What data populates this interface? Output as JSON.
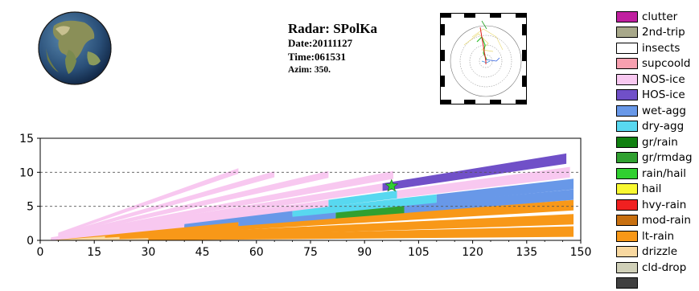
{
  "header": {
    "radar": "Radar: SPolKa",
    "date": "Date:20111127",
    "time": "Time:061531",
    "azim": "Azim: 350."
  },
  "legend": [
    {
      "label": "clutter",
      "color": "#c020a0"
    },
    {
      "label": "2nd-trip",
      "color": "#a8a88a"
    },
    {
      "label": "insects",
      "color": "#ffffff"
    },
    {
      "label": "supcoold",
      "color": "#f8a0b0"
    },
    {
      "label": "NOS-ice",
      "color": "#f8c8f0"
    },
    {
      "label": "HOS-ice",
      "color": "#7050c8"
    },
    {
      "label": "wet-agg",
      "color": "#6898e8"
    },
    {
      "label": "dry-agg",
      "color": "#58d8f0"
    },
    {
      "label": "gr/rain",
      "color": "#108010"
    },
    {
      "label": "gr/rmdag",
      "color": "#30a030"
    },
    {
      "label": "rain/hail",
      "color": "#30d030"
    },
    {
      "label": "hail",
      "color": "#f8f830"
    },
    {
      "label": "hvy-rain",
      "color": "#f02020"
    },
    {
      "label": "mod-rain",
      "color": "#c87010"
    },
    {
      "label": "lt-rain",
      "color": "#f89818"
    },
    {
      "label": "drizzle",
      "color": "#f8d8a0"
    },
    {
      "label": "cld-drop",
      "color": "#d0d0b8"
    },
    {
      "label": "",
      "color": "#404040"
    }
  ],
  "chart_data": {
    "type": "heatmap",
    "title": "",
    "xlabel": "",
    "ylabel": "",
    "xlim": [
      0,
      150
    ],
    "ylim": [
      0,
      15
    ],
    "xticks": [
      0,
      15,
      30,
      45,
      60,
      75,
      90,
      105,
      120,
      135,
      150
    ],
    "yticks": [
      0,
      5,
      10,
      15
    ],
    "grid_y": [
      5,
      10
    ],
    "grid_style": "dashed",
    "marker": {
      "symbol": "star",
      "color": "#30d030",
      "x": 97.5,
      "y": 8.0
    },
    "beams": [
      {
        "elev_deg": 0.5,
        "x0": 3,
        "x1": 148,
        "segments": [
          {
            "x0": 0,
            "x1": 30,
            "cat": "drizzle"
          },
          {
            "x0": 30,
            "x1": 148,
            "cat": "lt-rain"
          }
        ]
      },
      {
        "elev_deg": 1.2,
        "x0": 3,
        "x1": 148,
        "segments": [
          {
            "x0": 0,
            "x1": 22,
            "cat": "drizzle"
          },
          {
            "x0": 22,
            "x1": 148,
            "cat": "lt-rain"
          }
        ]
      },
      {
        "elev_deg": 2.0,
        "x0": 3,
        "x1": 148,
        "segments": [
          {
            "x0": 0,
            "x1": 18,
            "cat": "drizzle"
          },
          {
            "x0": 18,
            "x1": 148,
            "cat": "lt-rain"
          }
        ]
      },
      {
        "elev_deg": 2.6,
        "x0": 3,
        "x1": 148,
        "segments": [
          {
            "x0": 0,
            "x1": 55,
            "cat": "lt-rain"
          },
          {
            "x0": 55,
            "x1": 82,
            "cat": "wet-agg"
          },
          {
            "x0": 82,
            "x1": 101,
            "cat": "gr/rmdag"
          },
          {
            "x0": 101,
            "x1": 148,
            "cat": "wet-agg"
          }
        ]
      },
      {
        "elev_deg": 3.2,
        "x0": 3,
        "x1": 148,
        "segments": [
          {
            "x0": 0,
            "x1": 40,
            "cat": "NOS-ice"
          },
          {
            "x0": 40,
            "x1": 70,
            "cat": "wet-agg"
          },
          {
            "x0": 70,
            "x1": 110,
            "cat": "dry-agg"
          },
          {
            "x0": 110,
            "x1": 148,
            "cat": "wet-agg"
          }
        ]
      },
      {
        "elev_deg": 3.9,
        "x0": 3,
        "x1": 147,
        "segments": [
          {
            "x0": 0,
            "x1": 80,
            "cat": "NOS-ice"
          },
          {
            "x0": 80,
            "x1": 99,
            "cat": "dry-agg"
          },
          {
            "x0": 99,
            "x1": 147,
            "cat": "NOS-ice"
          }
        ]
      },
      {
        "elev_deg": 4.7,
        "x0": 3,
        "x1": 146,
        "segments": [
          {
            "x0": 0,
            "x1": 95,
            "cat": "NOS-ice"
          },
          {
            "x0": 95,
            "x1": 146,
            "cat": "HOS-ice"
          }
        ]
      },
      {
        "elev_deg": 5.6,
        "x0": 5,
        "x1": 98,
        "segments": [
          {
            "x0": 0,
            "x1": 98,
            "cat": "NOS-ice"
          }
        ]
      },
      {
        "elev_deg": 6.9,
        "x0": 5,
        "x1": 80,
        "segments": [
          {
            "x0": 0,
            "x1": 80,
            "cat": "NOS-ice"
          }
        ]
      },
      {
        "elev_deg": 8.5,
        "x0": 5,
        "x1": 65,
        "segments": [
          {
            "x0": 0,
            "x1": 65,
            "cat": "NOS-ice"
          }
        ]
      },
      {
        "elev_deg": 10.5,
        "x0": 5,
        "x1": 55,
        "segments": [
          {
            "x0": 0,
            "x1": 55,
            "cat": "NOS-ice"
          }
        ]
      }
    ]
  }
}
